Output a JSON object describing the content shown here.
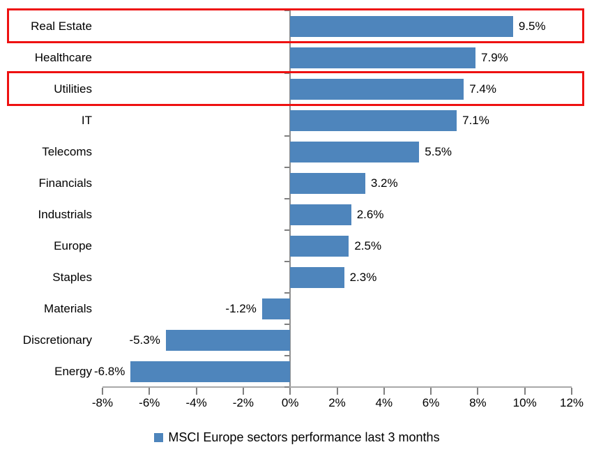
{
  "chart_data": {
    "type": "bar",
    "orientation": "horizontal",
    "title": "",
    "xlabel": "",
    "ylabel": "",
    "categories": [
      "Real Estate",
      "Healthcare",
      "Utilities",
      "IT",
      "Telecoms",
      "Financials",
      "Industrials",
      "Europe",
      "Staples",
      "Materials",
      "Discretionary",
      "Energy"
    ],
    "values": [
      9.5,
      7.9,
      7.4,
      7.1,
      5.5,
      3.2,
      2.6,
      2.5,
      2.3,
      -1.2,
      -5.3,
      -6.8
    ],
    "value_labels": [
      "9.5%",
      "7.9%",
      "7.4%",
      "7.1%",
      "5.5%",
      "3.2%",
      "2.6%",
      "2.5%",
      "2.3%",
      "-1.2%",
      "-5.3%",
      "-6.8%"
    ],
    "x_tick_labels": [
      "-8%",
      "-6%",
      "-4%",
      "-2%",
      "0%",
      "2%",
      "4%",
      "6%",
      "8%",
      "10%",
      "12%"
    ],
    "x_tick_values": [
      -8,
      -6,
      -4,
      -2,
      0,
      2,
      4,
      6,
      8,
      10,
      12
    ],
    "xlim": [
      -8,
      12
    ],
    "grid": false,
    "legend": "MSCI Europe sectors performance last 3 months",
    "legend_position": "bottom",
    "bar_color": "#4e85bc",
    "highlight_color": "#ee1111",
    "highlighted_categories": [
      "Real Estate",
      "Utilities"
    ]
  }
}
